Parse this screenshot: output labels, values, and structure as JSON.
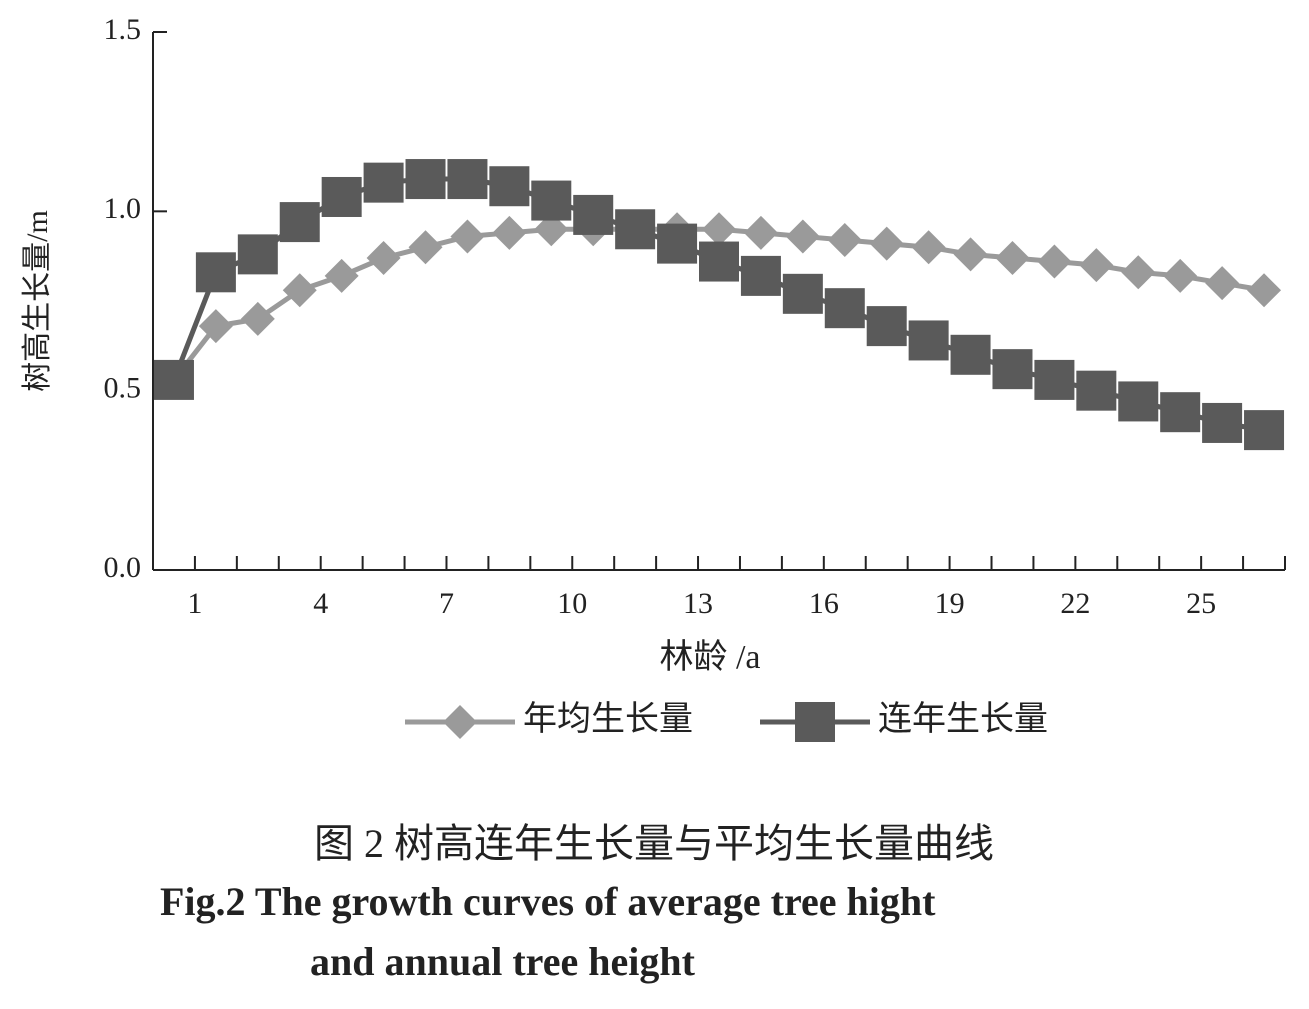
{
  "chart_data": {
    "type": "line",
    "x_label": "林龄 /a",
    "y_label": "树高生长量/m",
    "categories": [
      "1",
      null,
      null,
      "4",
      null,
      null,
      "7",
      null,
      null,
      "10",
      null,
      null,
      "13",
      null,
      null,
      "16",
      null,
      null,
      "19",
      null,
      null,
      "22",
      null,
      null,
      "25",
      null,
      null
    ],
    "series": [
      {
        "name": "年均生长量",
        "color": "#9a9a9a",
        "marker": "diamond",
        "values": [
          0.53,
          0.68,
          0.7,
          0.78,
          0.82,
          0.87,
          0.9,
          0.93,
          0.94,
          0.95,
          0.95,
          0.95,
          0.95,
          0.95,
          0.94,
          0.93,
          0.92,
          0.91,
          0.9,
          0.88,
          0.87,
          0.86,
          0.85,
          0.83,
          0.82,
          0.8,
          0.78
        ]
      },
      {
        "name": "连年生长量",
        "color": "#5a5a5a",
        "marker": "square",
        "values": [
          0.53,
          0.83,
          0.88,
          0.97,
          1.04,
          1.08,
          1.09,
          1.09,
          1.07,
          1.03,
          0.99,
          0.95,
          0.91,
          0.86,
          0.82,
          0.77,
          0.73,
          0.68,
          0.64,
          0.6,
          0.56,
          0.53,
          0.5,
          0.47,
          0.44,
          0.41,
          0.39
        ]
      }
    ],
    "ylim": [
      0,
      1.5
    ],
    "yticks": [
      {
        "value": 0,
        "label": "0.0"
      },
      0.5,
      {
        "value": 1,
        "label": "1.0"
      },
      1.5
    ],
    "legend": "bottom",
    "caption": [
      "图 2   树高连年生长量与平均生长量曲线",
      "Fig.2   The growth curves of average tree hight",
      "and annual tree height"
    ]
  }
}
